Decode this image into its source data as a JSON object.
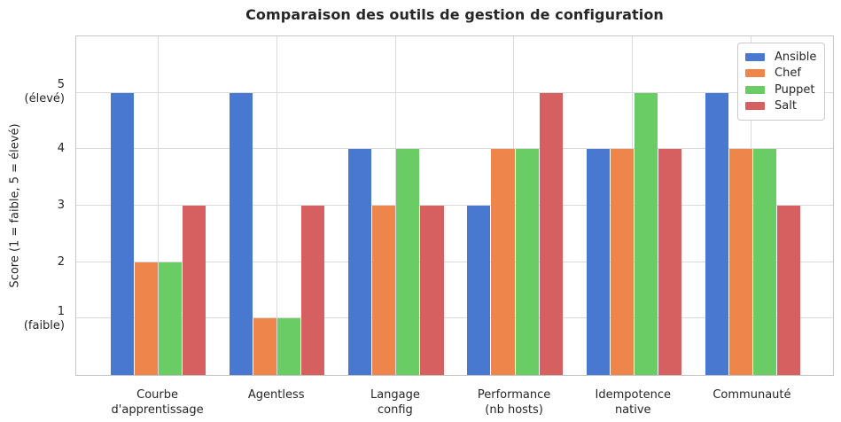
{
  "chart_data": {
    "type": "bar",
    "title": "Comparaison des outils de gestion de configuration",
    "xlabel": "",
    "ylabel": "Score (1 = faible, 5 = élevé)",
    "categories": [
      "Courbe d'apprentissage",
      "Agentless",
      "Langage config",
      "Performance (nb hosts)",
      "Idempotence native",
      "Communauté"
    ],
    "category_label_lines": [
      [
        "Courbe",
        "d'apprentissage"
      ],
      [
        "Agentless"
      ],
      [
        "Langage",
        "config"
      ],
      [
        "Performance",
        "(nb hosts)"
      ],
      [
        "Idempotence",
        "native"
      ],
      [
        "Communauté"
      ]
    ],
    "series": [
      {
        "name": "Ansible",
        "color": "#4878D0",
        "values": [
          5,
          5,
          4,
          3,
          4,
          5
        ]
      },
      {
        "name": "Chef",
        "color": "#EE854A",
        "values": [
          2,
          1,
          3,
          4,
          4,
          4
        ]
      },
      {
        "name": "Puppet",
        "color": "#6ACC64",
        "values": [
          2,
          1,
          4,
          4,
          5,
          4
        ]
      },
      {
        "name": "Salt",
        "color": "#D65F5F",
        "values": [
          3,
          3,
          3,
          5,
          4,
          3
        ]
      }
    ],
    "yticks": [
      {
        "value": 5,
        "lines": [
          "5",
          "(élevé)"
        ]
      },
      {
        "value": 4,
        "lines": [
          "4"
        ]
      },
      {
        "value": 3,
        "lines": [
          "3"
        ]
      },
      {
        "value": 2,
        "lines": [
          "2"
        ]
      },
      {
        "value": 1,
        "lines": [
          "1",
          "(faible)"
        ]
      }
    ],
    "ylim": [
      0,
      6
    ],
    "xlim": [
      -0.69,
      5.69
    ],
    "bar_group_width_units": 0.8,
    "grid": true,
    "legend_position": "upper right",
    "colors": {
      "text": "#262626",
      "gridline": "#dadada",
      "spine": "#c6c6c6",
      "background": "#ffffff"
    }
  }
}
